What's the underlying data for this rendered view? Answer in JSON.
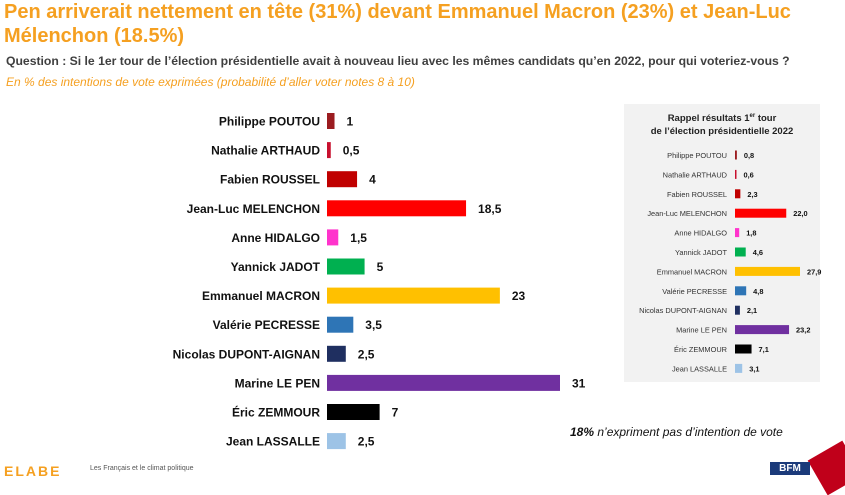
{
  "title": "Pen arriverait nettement en tête (31%) devant Emmanuel Macron (23%) et Jean-Luc Mélenchon (18.5%)",
  "question": "Question : Si le 1er tour de l’élection présidentielle avait à nouveau lieu avec les mêmes candidats qu’en 2022, pour qui voteriez-vous ?",
  "subtitle": "En % des intentions de vote exprimées (probabilité d’aller voter notes 8 à 10)",
  "panel": {
    "title_line1": "Rappel résultats 1",
    "title_sup": "er",
    "title_line1_end": " tour",
    "title_line2": "de l’élection présidentielle 2022"
  },
  "note": {
    "pct": "18%",
    "text": " n’expriment pas d’intention de vote"
  },
  "footer": {
    "text": "Les Français et le climat politique",
    "logo_left": "ELABE",
    "logo_right": "BFM"
  },
  "chart_data": [
    {
      "type": "bar",
      "orientation": "horizontal",
      "title": "Pen arriverait nettement en tête (31%) devant Emmanuel Macron (23%) et Jean-Luc Mélenchon (18.5%)",
      "categories": [
        "Philippe POUTOU",
        "Nathalie ARTHAUD",
        "Fabien ROUSSEL",
        "Jean-Luc MELENCHON",
        "Anne HIDALGO",
        "Yannick JADOT",
        "Emmanuel MACRON",
        "Valérie PECRESSE",
        "Nicolas DUPONT-AIGNAN",
        "Marine LE PEN",
        "Éric ZEMMOUR",
        "Jean LASSALLE"
      ],
      "values": [
        1,
        0.5,
        4,
        18.5,
        1.5,
        5,
        23,
        3.5,
        2.5,
        31,
        7,
        2.5
      ],
      "value_labels": [
        "1",
        "0,5",
        "4",
        "18,5",
        "1,5",
        "5",
        "23",
        "3,5",
        "2,5",
        "31",
        "7",
        "2,5"
      ],
      "colors": [
        "#9b1c20",
        "#c8102e",
        "#c00000",
        "#ff0000",
        "#ff33cc",
        "#00b050",
        "#ffc000",
        "#2e75b6",
        "#1f2f60",
        "#7030a0",
        "#000000",
        "#9dc3e6"
      ],
      "xlim": [
        0,
        31
      ],
      "grid": false,
      "legend": "none"
    },
    {
      "type": "bar",
      "orientation": "horizontal",
      "title": "Rappel résultats 1er tour de l’élection présidentielle 2022",
      "categories": [
        "Philippe POUTOU",
        "Nathalie ARTHAUD",
        "Fabien ROUSSEL",
        "Jean-Luc MELENCHON",
        "Anne HIDALGO",
        "Yannick JADOT",
        "Emmanuel MACRON",
        "Valérie PECRESSE",
        "Nicolas DUPONT-AIGNAN",
        "Marine LE PEN",
        "Éric ZEMMOUR",
        "Jean LASSALLE"
      ],
      "values": [
        0.8,
        0.6,
        2.3,
        22.0,
        1.8,
        4.6,
        27.9,
        4.8,
        2.1,
        23.2,
        7.1,
        3.1
      ],
      "value_labels": [
        "0,8",
        "0,6",
        "2,3",
        "22,0",
        "1,8",
        "4,6",
        "27,9",
        "4,8",
        "2,1",
        "23,2",
        "7,1",
        "3,1"
      ],
      "colors": [
        "#9b1c20",
        "#c8102e",
        "#c00000",
        "#ff0000",
        "#ff33cc",
        "#00b050",
        "#ffc000",
        "#2e75b6",
        "#1f2f60",
        "#7030a0",
        "#000000",
        "#9dc3e6"
      ],
      "xlim": [
        0,
        27.9
      ],
      "grid": false,
      "legend": "none"
    }
  ]
}
